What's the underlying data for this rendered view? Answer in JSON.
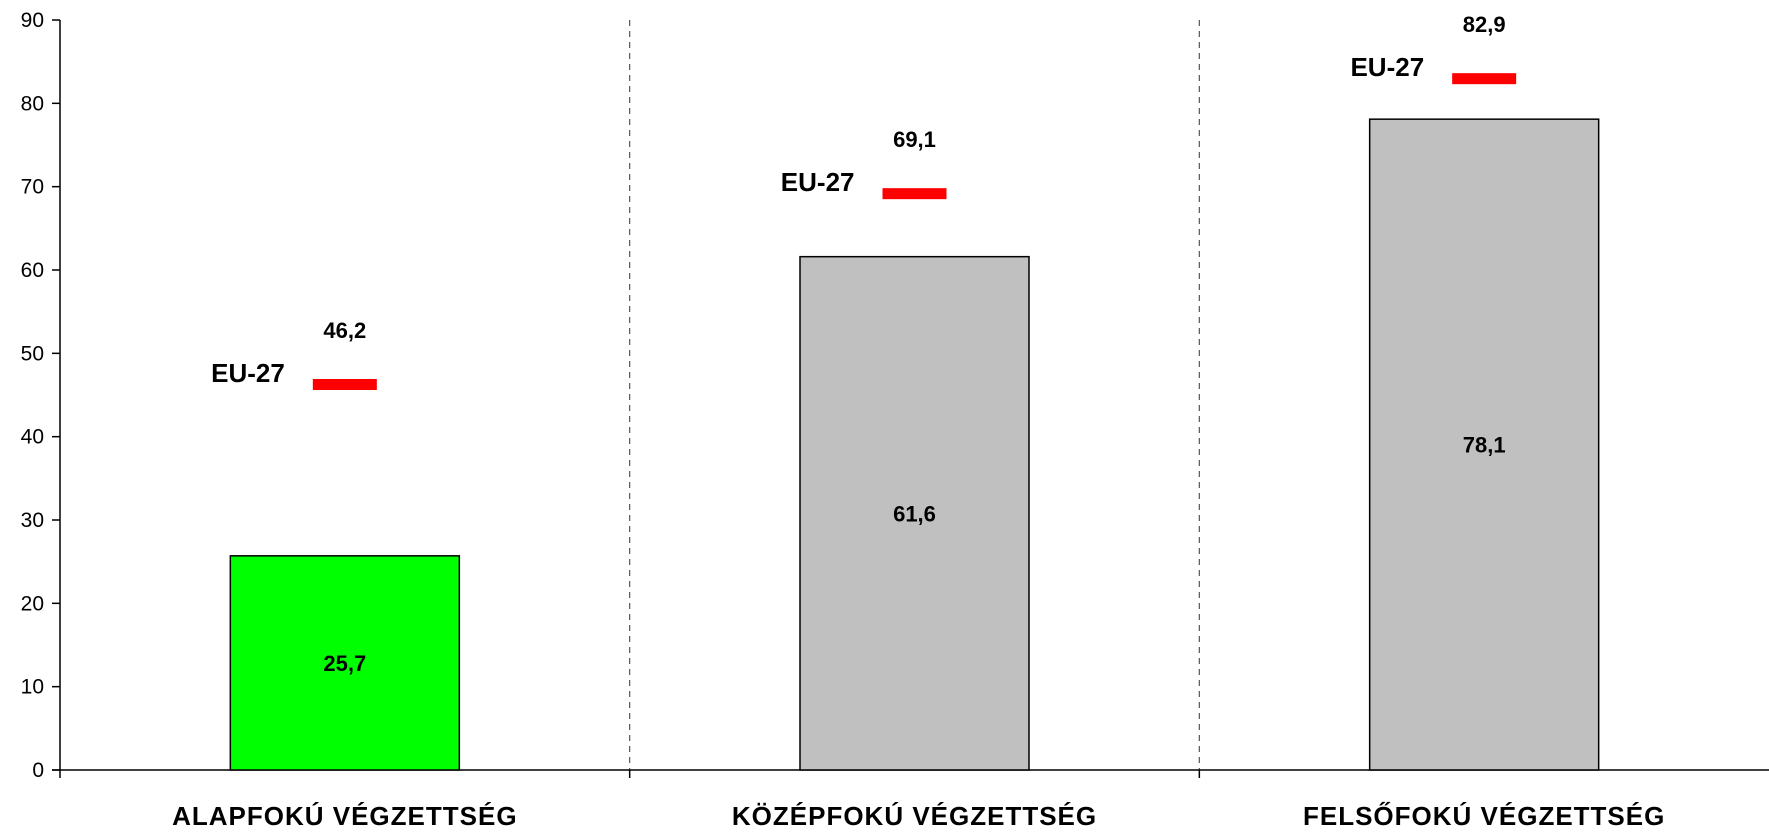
{
  "chart_data": {
    "type": "bar",
    "categories": [
      "ALAPFOKÚ VÉGZETTSÉG",
      "KÖZÉPFOKÚ VÉGZETTSÉG",
      "FELSŐFOKÚ VÉGZETTSÉG"
    ],
    "values": [
      25.7,
      61.6,
      78.1
    ],
    "value_labels": [
      "25,7",
      "61,6",
      "78,1"
    ],
    "bar_colors": [
      "#00ff00",
      "#c0c0c0",
      "#c0c0c0"
    ],
    "reference": {
      "name": "EU-27",
      "values": [
        46.2,
        69.1,
        82.9
      ],
      "value_labels": [
        "46,2",
        "69,1",
        "82,9"
      ],
      "color": "#ff0000"
    },
    "ylim": [
      0,
      90
    ],
    "yticks": [
      0,
      10,
      20,
      30,
      40,
      50,
      60,
      70,
      80,
      90
    ],
    "title": "",
    "xlabel": "",
    "ylabel": "",
    "grid": false,
    "category_separators": "dashed"
  }
}
